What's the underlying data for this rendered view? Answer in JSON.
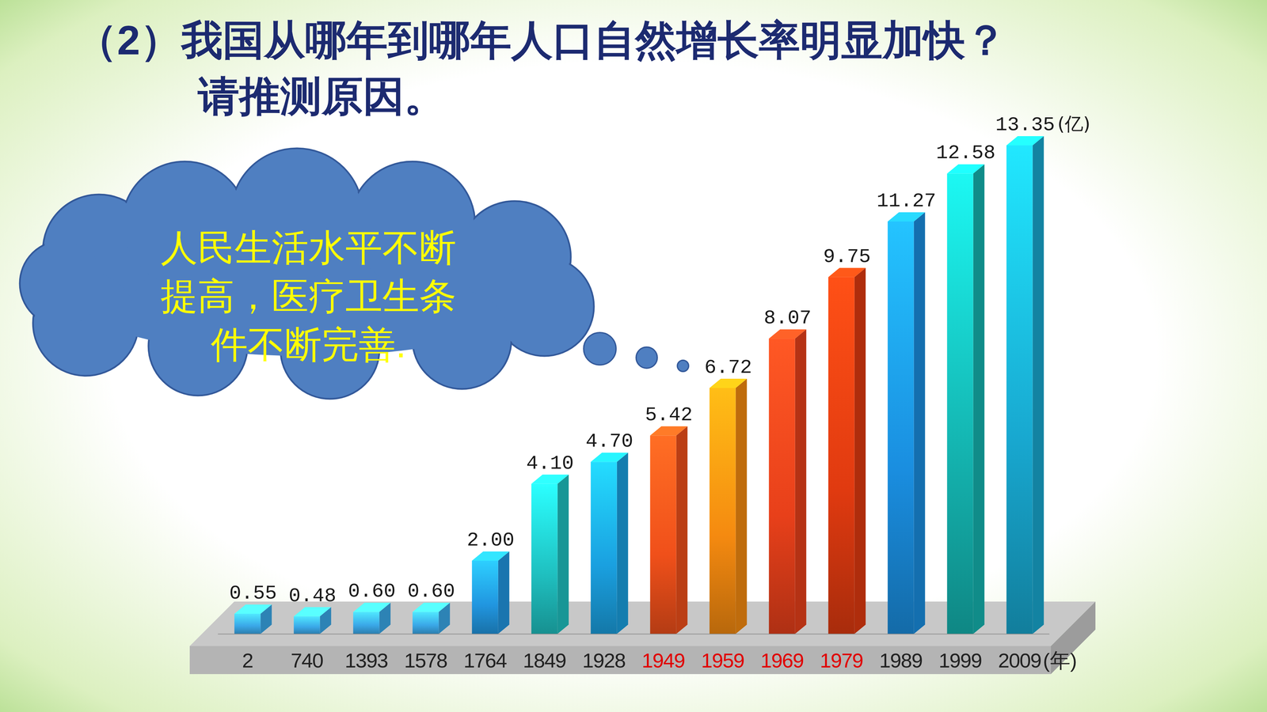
{
  "chart_data": {
    "type": "bar",
    "title": "（2）我国从哪年到哪年人口自然增长率明显加快？",
    "subtitle": "请推测原因。",
    "x_label": "(年)",
    "y_label": "(亿)",
    "categories": [
      "2",
      "740",
      "1393",
      "1578",
      "1764",
      "1849",
      "1928",
      "1949",
      "1959",
      "1969",
      "1979",
      "1989",
      "1999",
      "2009"
    ],
    "values": [
      0.55,
      0.48,
      0.6,
      0.6,
      2.0,
      4.1,
      4.7,
      5.42,
      6.72,
      8.07,
      9.75,
      11.27,
      12.58,
      13.35
    ],
    "value_labels": [
      "0.55",
      "0.48",
      "0.60",
      "0.60",
      "2.00",
      "4.10",
      "4.70",
      "5.42",
      "6.72",
      "8.07",
      "9.75",
      "11.27",
      "12.58",
      "13.35"
    ],
    "colors": [
      "#3aa8e8",
      "#3aa8e8",
      "#3aa8e8",
      "#3aa8e8",
      "#2196e0",
      "#1fc0c0",
      "#1aa0e0",
      "#f0501a",
      "#f58a10",
      "#e8401a",
      "#e03a10",
      "#1a8ee0",
      "#14b4b0",
      "#18a8d0"
    ],
    "ylim": [
      0,
      13.35
    ],
    "data_labels": true,
    "tick_labels": "x",
    "annotations": [
      {
        "text": "人民生活水平不断提高，医疗卫生条件不断完善."
      }
    ]
  }
}
